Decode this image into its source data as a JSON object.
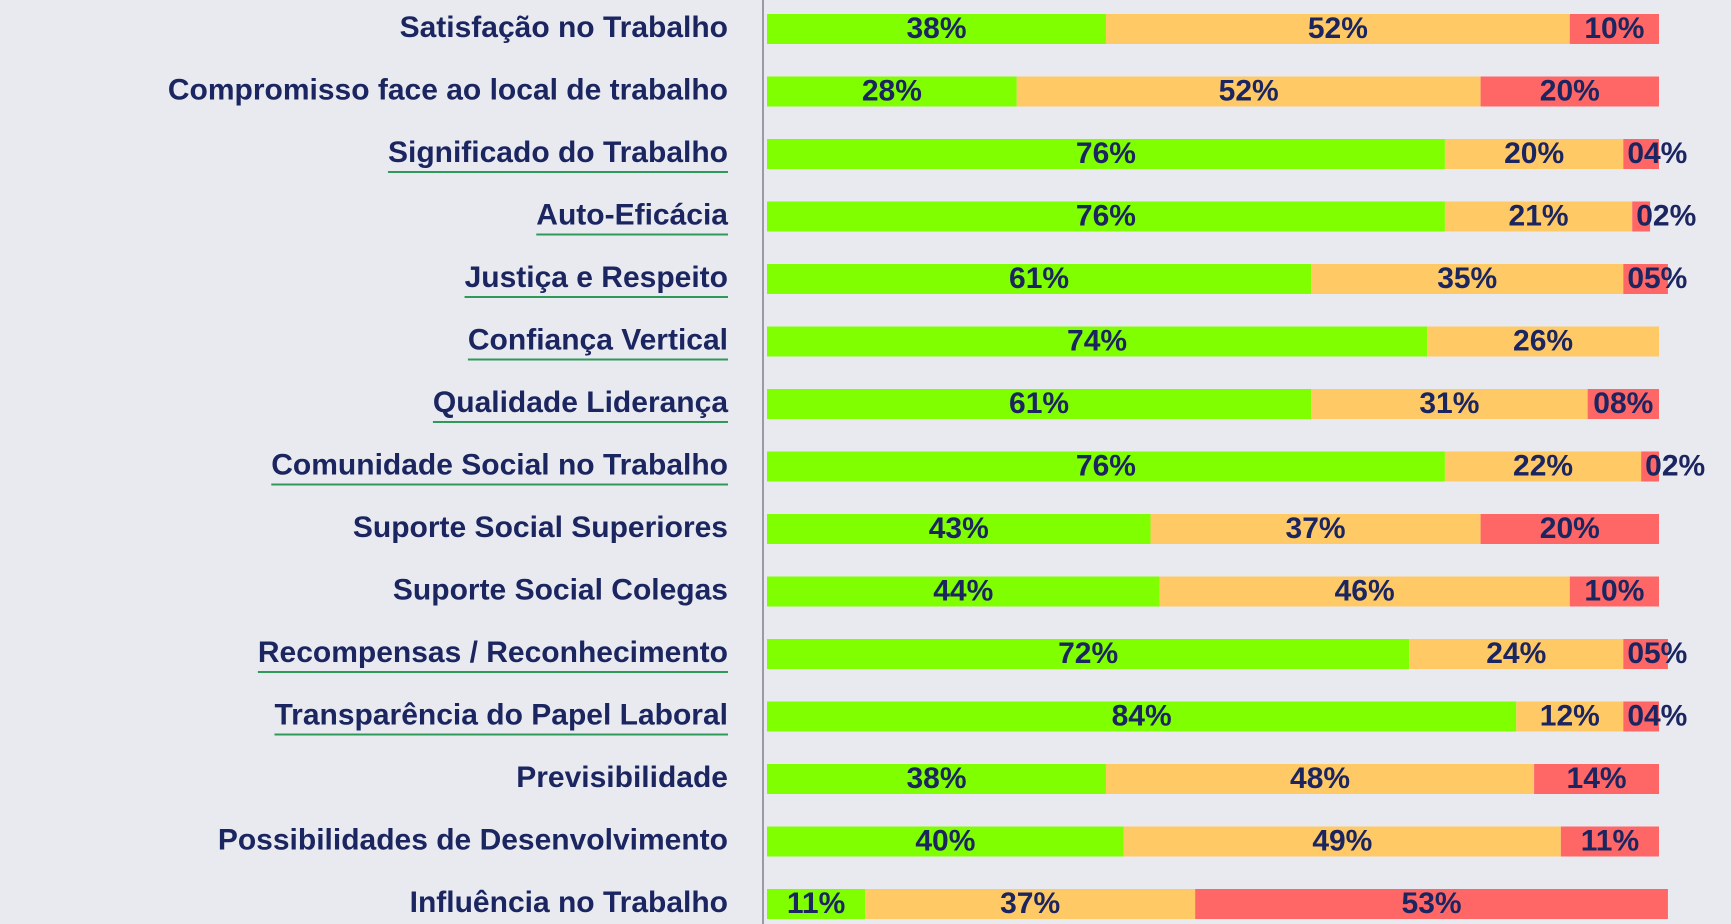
{
  "chart_data": {
    "type": "stacked-bar-horizontal",
    "categories": [
      "Satisfação no Trabalho",
      "Compromisso face ao local de trabalho",
      "Significado do Trabalho",
      "Auto-Eficácia",
      "Justiça e Respeito",
      "Confiança Vertical",
      "Qualidade Liderança",
      "Comunidade Social no Trabalho",
      "Suporte Social Superiores",
      "Suporte Social Colegas",
      "Recompensas / Reconhecimento",
      "Transparência do Papel Laboral",
      "Previsibilidade",
      "Possibilidades de Desenvolvimento",
      "Influência no Trabalho"
    ],
    "underline": [
      false,
      false,
      true,
      true,
      true,
      true,
      true,
      true,
      false,
      false,
      true,
      true,
      false,
      false,
      false
    ],
    "xlim": [
      0,
      100
    ],
    "series": [
      {
        "color": "#80ff00",
        "values": [
          38,
          28,
          76,
          76,
          61,
          74,
          61,
          76,
          43,
          44,
          72,
          84,
          38,
          40,
          11
        ],
        "value_labels": [
          "38%",
          "28%",
          "76%",
          "76%",
          "61%",
          "74%",
          "61%",
          "76%",
          "43%",
          "44%",
          "72%",
          "84%",
          "38%",
          "40%",
          "11%"
        ]
      },
      {
        "color": "#ffc966",
        "values": [
          52,
          52,
          20,
          21,
          35,
          26,
          31,
          22,
          37,
          46,
          24,
          12,
          48,
          49,
          37
        ],
        "value_labels": [
          "52%",
          "52%",
          "20%",
          "21%",
          "35%",
          "26%",
          "31%",
          "22%",
          "37%",
          "46%",
          "24%",
          "12%",
          "48%",
          "49%",
          "37%"
        ]
      },
      {
        "color": "#ff6666",
        "values": [
          10,
          20,
          4,
          2,
          5,
          null,
          8,
          2,
          20,
          10,
          5,
          4,
          14,
          11,
          53
        ],
        "value_labels": [
          "10%",
          "20%",
          "04%",
          "02%",
          "05%",
          null,
          "08%",
          "02%",
          "20%",
          "10%",
          "05%",
          "04%",
          "14%",
          "11%",
          "53%"
        ]
      }
    ]
  }
}
